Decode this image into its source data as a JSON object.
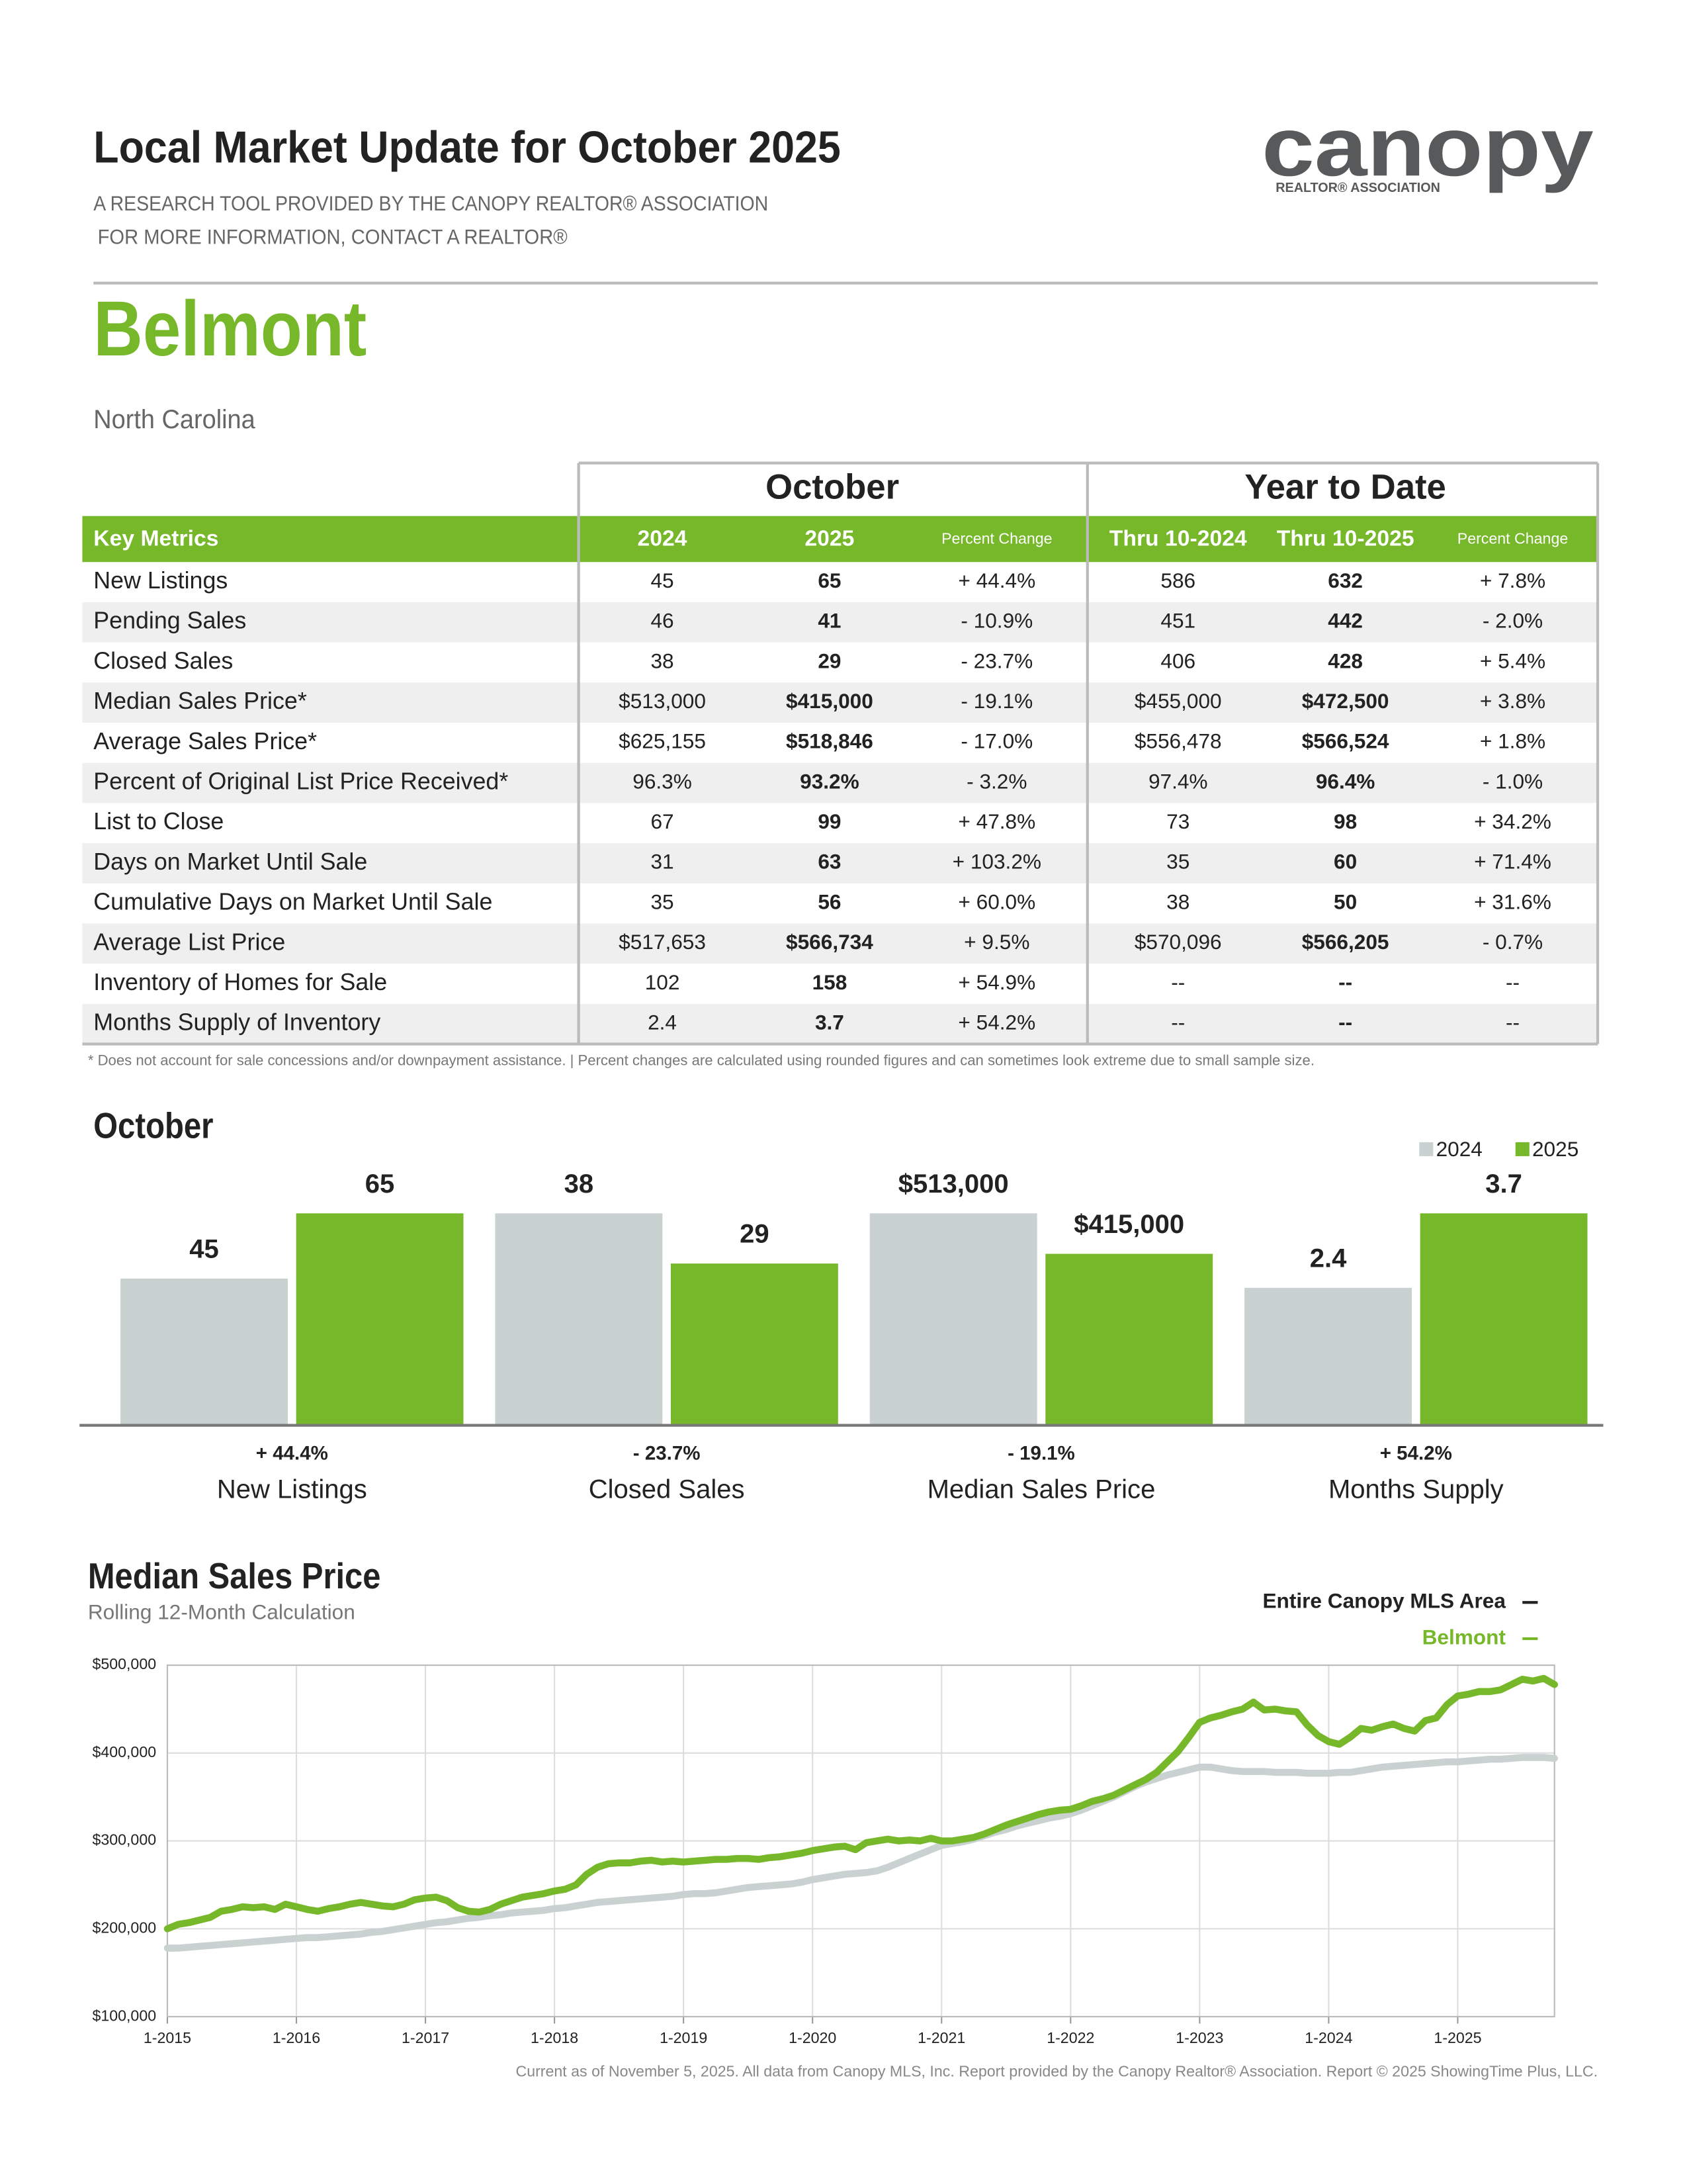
{
  "header": {
    "title": "Local Market Update for October 2025",
    "subtitle_lines": [
      "A RESEARCH TOOL PROVIDED BY THE CANOPY REALTOR® ASSOCIATION",
      "FOR MORE INFORMATION, CONTACT A REALTOR®"
    ],
    "logo": "canopy",
    "logo_tagline": "REALTOR® ASSOCIATION"
  },
  "area": "Belmont",
  "state": "North Carolina",
  "table": {
    "group_headers": [
      "October",
      "Year to Date"
    ],
    "columns": [
      "Key Metrics",
      "2024",
      "2025",
      "Percent Change",
      "Thru 10-2024",
      "Thru 10-2025",
      "Percent Change"
    ],
    "rows": [
      [
        "New Listings",
        "45",
        "65",
        "+ 44.4%",
        "586",
        "632",
        "+ 7.8%"
      ],
      [
        "Pending Sales",
        "46",
        "41",
        "- 10.9%",
        "451",
        "442",
        "- 2.0%"
      ],
      [
        "Closed Sales",
        "38",
        "29",
        "- 23.7%",
        "406",
        "428",
        "+ 5.4%"
      ],
      [
        "Median Sales Price*",
        "$513,000",
        "$415,000",
        "- 19.1%",
        "$455,000",
        "$472,500",
        "+ 3.8%"
      ],
      [
        "Average Sales Price*",
        "$625,155",
        "$518,846",
        "- 17.0%",
        "$556,478",
        "$566,524",
        "+ 1.8%"
      ],
      [
        "Percent of Original List Price Received*",
        "96.3%",
        "93.2%",
        "- 3.2%",
        "97.4%",
        "96.4%",
        "- 1.0%"
      ],
      [
        "List to Close",
        "67",
        "99",
        "+ 47.8%",
        "73",
        "98",
        "+ 34.2%"
      ],
      [
        "Days on Market Until Sale",
        "31",
        "63",
        "+ 103.2%",
        "35",
        "60",
        "+ 71.4%"
      ],
      [
        "Cumulative Days on Market Until Sale",
        "35",
        "56",
        "+ 60.0%",
        "38",
        "50",
        "+ 31.6%"
      ],
      [
        "Average List Price",
        "$517,653",
        "$566,734",
        "+ 9.5%",
        "$570,096",
        "$566,205",
        "- 0.7%"
      ],
      [
        "Inventory of Homes for Sale",
        "102",
        "158",
        "+ 54.9%",
        "--",
        "--",
        "--"
      ],
      [
        "Months Supply of Inventory",
        "2.4",
        "3.7",
        "+ 54.2%",
        "--",
        "--",
        "--"
      ]
    ]
  },
  "footnote": "* Does not account for sale concessions and/or downpayment assistance.  |  Percent changes are calculated using rounded figures and can sometimes look extreme due to small sample size.",
  "chart_data": [
    {
      "type": "bar",
      "title": "October",
      "categories": [
        "New Listings",
        "Closed Sales",
        "Median Sales Price",
        "Months Supply"
      ],
      "series": [
        {
          "name": "2024",
          "color": "#c9d1d1",
          "values": [
            45,
            38,
            513000,
            2.4
          ],
          "value_labels": [
            "45",
            "38",
            "$513,000",
            "2.4"
          ]
        },
        {
          "name": "2025",
          "color": "#76b82a",
          "values": [
            65,
            29,
            415000,
            3.7
          ],
          "value_labels": [
            "65",
            "29",
            "$415,000",
            "3.7"
          ]
        }
      ],
      "change_labels": [
        "+ 44.4%",
        "- 23.7%",
        "- 19.1%",
        "+ 54.2%"
      ],
      "legend": "top-right"
    },
    {
      "type": "line",
      "title": "Median Sales Price",
      "subtitle": "Rolling 12-Month Calculation",
      "x": [
        "1-2015",
        "2-2015",
        "3-2015",
        "4-2015",
        "5-2015",
        "6-2015",
        "7-2015",
        "8-2015",
        "9-2015",
        "10-2015",
        "11-2015",
        "12-2015",
        "1-2016",
        "2-2016",
        "3-2016",
        "4-2016",
        "5-2016",
        "6-2016",
        "7-2016",
        "8-2016",
        "9-2016",
        "10-2016",
        "11-2016",
        "12-2016",
        "1-2017",
        "2-2017",
        "3-2017",
        "4-2017",
        "5-2017",
        "6-2017",
        "7-2017",
        "8-2017",
        "9-2017",
        "10-2017",
        "11-2017",
        "12-2017",
        "1-2018",
        "2-2018",
        "3-2018",
        "4-2018",
        "5-2018",
        "6-2018",
        "7-2018",
        "8-2018",
        "9-2018",
        "10-2018",
        "11-2018",
        "12-2018",
        "1-2019",
        "2-2019",
        "3-2019",
        "4-2019",
        "5-2019",
        "6-2019",
        "7-2019",
        "8-2019",
        "9-2019",
        "10-2019",
        "11-2019",
        "12-2019",
        "1-2020",
        "2-2020",
        "3-2020",
        "4-2020",
        "5-2020",
        "6-2020",
        "7-2020",
        "8-2020",
        "9-2020",
        "10-2020",
        "11-2020",
        "12-2020",
        "1-2021",
        "2-2021",
        "3-2021",
        "4-2021",
        "5-2021",
        "6-2021",
        "7-2021",
        "8-2021",
        "9-2021",
        "10-2021",
        "11-2021",
        "12-2021",
        "1-2022",
        "2-2022",
        "3-2022",
        "4-2022",
        "5-2022",
        "6-2022",
        "7-2022",
        "8-2022",
        "9-2022",
        "10-2022",
        "11-2022",
        "12-2022",
        "1-2023",
        "2-2023",
        "3-2023",
        "4-2023",
        "5-2023",
        "6-2023",
        "7-2023",
        "8-2023",
        "9-2023",
        "10-2023",
        "11-2023",
        "12-2023",
        "1-2024",
        "2-2024",
        "3-2024",
        "4-2024",
        "5-2024",
        "6-2024",
        "7-2024",
        "8-2024",
        "9-2024",
        "10-2024",
        "11-2024",
        "12-2024",
        "1-2025",
        "2-2025",
        "3-2025",
        "4-2025",
        "5-2025",
        "6-2025",
        "7-2025",
        "8-2025",
        "9-2025",
        "10-2025"
      ],
      "series": [
        {
          "name": "Entire Canopy MLS Area",
          "color": "#c9d1d1",
          "values": [
            178000,
            178000,
            179000,
            180000,
            181000,
            182000,
            183000,
            184000,
            185000,
            186000,
            187000,
            188000,
            189000,
            190000,
            190000,
            191000,
            192000,
            193000,
            194000,
            196000,
            197000,
            199000,
            201000,
            203000,
            205000,
            207000,
            208000,
            210000,
            212000,
            213000,
            215000,
            216000,
            218000,
            219000,
            220000,
            221000,
            223000,
            224000,
            226000,
            228000,
            230000,
            231000,
            232000,
            233000,
            234000,
            235000,
            236000,
            237000,
            239000,
            240000,
            240000,
            241000,
            243000,
            245000,
            247000,
            248000,
            249000,
            250000,
            251000,
            253000,
            256000,
            258000,
            260000,
            262000,
            263000,
            264000,
            266000,
            270000,
            275000,
            280000,
            285000,
            290000,
            295000,
            297000,
            299000,
            302000,
            306000,
            310000,
            313000,
            317000,
            320000,
            323000,
            326000,
            328000,
            331000,
            335000,
            340000,
            345000,
            350000,
            356000,
            362000,
            367000,
            371000,
            375000,
            378000,
            381000,
            384000,
            384000,
            382000,
            380000,
            379000,
            379000,
            379000,
            378000,
            378000,
            378000,
            377000,
            377000,
            377000,
            378000,
            378000,
            380000,
            382000,
            384000,
            385000,
            386000,
            387000,
            388000,
            389000,
            390000,
            390000,
            391000,
            392000,
            393000,
            393000,
            394000,
            395000,
            395000,
            395000,
            394000
          ]
        },
        {
          "name": "Belmont",
          "color": "#76b82a",
          "values": [
            200000,
            205000,
            207000,
            210000,
            213000,
            220000,
            222000,
            225000,
            224000,
            225000,
            222000,
            228000,
            225000,
            222000,
            220000,
            223000,
            225000,
            228000,
            230000,
            228000,
            226000,
            225000,
            228000,
            233000,
            235000,
            236000,
            232000,
            224000,
            220000,
            219000,
            222000,
            228000,
            232000,
            236000,
            238000,
            240000,
            243000,
            245000,
            250000,
            262000,
            270000,
            274000,
            275000,
            275000,
            277000,
            278000,
            276000,
            277000,
            276000,
            277000,
            278000,
            279000,
            279000,
            280000,
            280000,
            279000,
            281000,
            282000,
            284000,
            286000,
            289000,
            291000,
            293000,
            294000,
            290000,
            298000,
            300000,
            302000,
            300000,
            301000,
            300000,
            303000,
            300000,
            300000,
            302000,
            304000,
            308000,
            313000,
            318000,
            322000,
            326000,
            330000,
            333000,
            335000,
            336000,
            340000,
            345000,
            348000,
            352000,
            358000,
            364000,
            370000,
            378000,
            390000,
            402000,
            418000,
            435000,
            440000,
            443000,
            447000,
            450000,
            458000,
            449000,
            450000,
            448000,
            447000,
            432000,
            420000,
            413000,
            410000,
            418000,
            428000,
            426000,
            430000,
            433000,
            428000,
            425000,
            437000,
            440000,
            455000,
            465000,
            467000,
            470000,
            470000,
            472000,
            478000,
            484000,
            482000,
            485000,
            478000
          ]
        }
      ],
      "ylim": [
        100000,
        500000
      ],
      "yticks": [
        {
          "value": 100000,
          "label": "$100,000"
        },
        {
          "value": 200000,
          "label": "$200,000"
        },
        {
          "value": 300000,
          "label": "$300,000"
        },
        {
          "value": 400000,
          "label": "$400,000"
        },
        {
          "value": 500000,
          "label": "$500,000"
        }
      ],
      "xticks": [
        "1-2015",
        "1-2016",
        "1-2017",
        "1-2018",
        "1-2019",
        "1-2020",
        "1-2021",
        "1-2022",
        "1-2023",
        "1-2024",
        "1-2025"
      ],
      "grid": true,
      "legend": "top-right"
    }
  ],
  "footer": "Current as of November 5, 2025. All data from Canopy MLS, Inc. Report provided by the Canopy Realtor® Association. Report © 2025 ShowingTime Plus, LLC."
}
